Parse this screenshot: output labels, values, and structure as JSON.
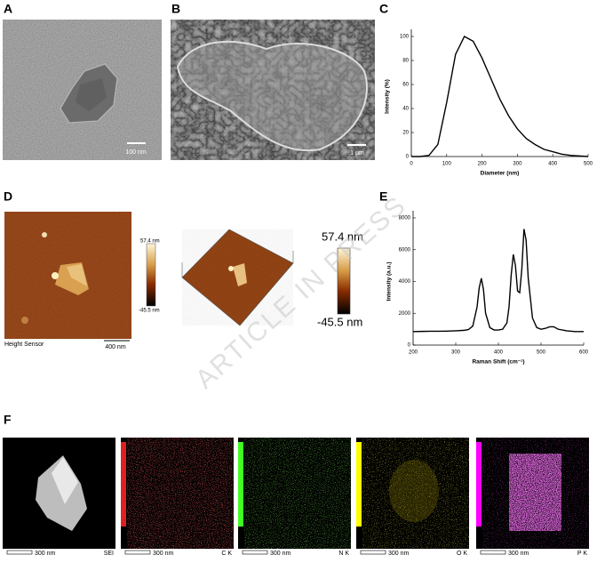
{
  "chart_data": [
    {
      "type": "line",
      "x_label": "Diameter (nm)",
      "y_label": "Intensity (%)",
      "x": [
        0,
        25,
        50,
        75,
        100,
        125,
        150,
        175,
        200,
        225,
        250,
        275,
        300,
        325,
        350,
        375,
        400,
        425,
        450,
        475,
        500
      ],
      "series": [
        {
          "color": "#000000",
          "values": [
            0,
            0,
            1,
            10,
            45,
            85,
            100,
            96,
            82,
            65,
            48,
            34,
            23,
            15,
            10,
            6,
            4,
            2,
            1,
            0.5,
            0
          ]
        }
      ],
      "xlim": [
        0,
        500
      ],
      "ylim": [
        0,
        100
      ],
      "xticks": [
        0,
        100,
        200,
        300,
        400,
        500
      ],
      "yticks": [
        0,
        20,
        40,
        60,
        80,
        100
      ]
    },
    {
      "type": "line",
      "x_label": "Raman Shift (cm⁻¹)",
      "y_label": "Intensity (a.u.)",
      "x": [
        200,
        220,
        240,
        260,
        280,
        300,
        320,
        330,
        340,
        350,
        355,
        360,
        365,
        370,
        380,
        390,
        400,
        410,
        420,
        425,
        430,
        435,
        440,
        445,
        450,
        455,
        460,
        465,
        470,
        480,
        490,
        500,
        510,
        520,
        530,
        540,
        560,
        580,
        600
      ],
      "series": [
        {
          "color": "#000000",
          "values": [
            850,
            860,
            870,
            870,
            880,
            900,
            930,
            980,
            1200,
            2400,
            3600,
            4200,
            3500,
            2000,
            1100,
            950,
            950,
            1000,
            1400,
            2400,
            4400,
            5700,
            5000,
            3400,
            3300,
            4800,
            7300,
            6600,
            4200,
            1700,
            1100,
            1000,
            1050,
            1150,
            1150,
            1000,
            900,
            850,
            850
          ]
        }
      ],
      "xlim": [
        200,
        600
      ],
      "ylim": [
        0,
        8000
      ],
      "xticks": [
        200,
        300,
        400,
        500,
        600
      ],
      "yticks": [
        0,
        2000,
        4000,
        6000,
        8000
      ]
    }
  ],
  "figure": {
    "labels": [
      "A",
      "B",
      "C",
      "D",
      "E",
      "F"
    ],
    "panel_a": {
      "scale_bar": "100 nm"
    },
    "panel_b": {
      "scale_bar": "1 μm"
    },
    "panel_d": {
      "caption": "Height Sensor",
      "scale_bar": "400 nm",
      "colorbar_max": "57.4 nm",
      "colorbar_min": "-45.5 nm"
    },
    "watermark": "ARTICLE IN PRESS",
    "panel_f": {
      "scale_bar": "300 nm",
      "maps": [
        "SEI",
        "C K",
        "N K",
        "O K",
        "P K"
      ]
    }
  }
}
